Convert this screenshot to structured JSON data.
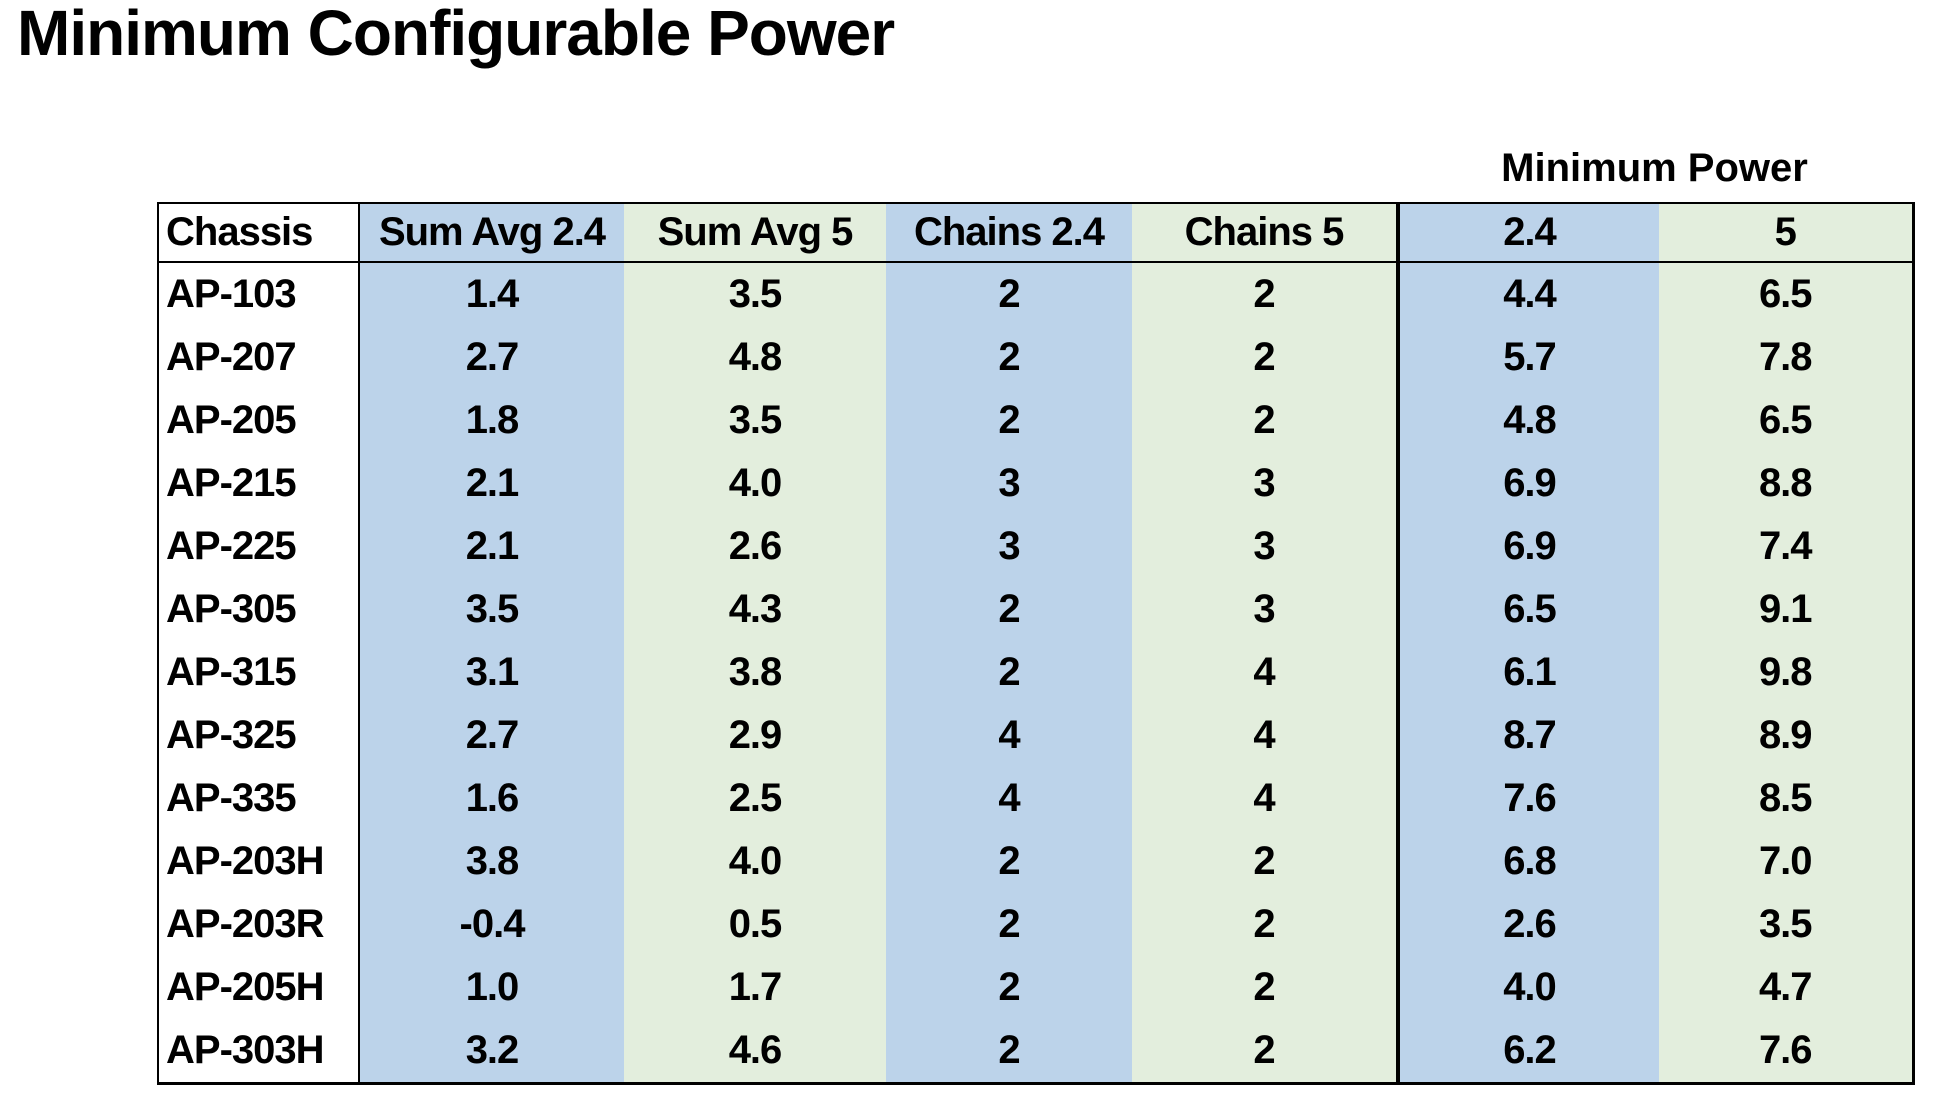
{
  "page": {
    "title": "Minimum Configurable Power"
  },
  "table": {
    "group_header": "Minimum Power",
    "headers": [
      "Chassis",
      "Sum Avg 2.4",
      "Sum Avg 5",
      "Chains 2.4",
      "Chains 5",
      "2.4",
      "5"
    ],
    "rows": [
      [
        "AP-103",
        "1.4",
        "3.5",
        "2",
        "2",
        "4.4",
        "6.5"
      ],
      [
        "AP-207",
        "2.7",
        "4.8",
        "2",
        "2",
        "5.7",
        "7.8"
      ],
      [
        "AP-205",
        "1.8",
        "3.5",
        "2",
        "2",
        "4.8",
        "6.5"
      ],
      [
        "AP-215",
        "2.1",
        "4.0",
        "3",
        "3",
        "6.9",
        "8.8"
      ],
      [
        "AP-225",
        "2.1",
        "2.6",
        "3",
        "3",
        "6.9",
        "7.4"
      ],
      [
        "AP-305",
        "3.5",
        "4.3",
        "2",
        "3",
        "6.5",
        "9.1"
      ],
      [
        "AP-315",
        "3.1",
        "3.8",
        "2",
        "4",
        "6.1",
        "9.8"
      ],
      [
        "AP-325",
        "2.7",
        "2.9",
        "4",
        "4",
        "8.7",
        "8.9"
      ],
      [
        "AP-335",
        "1.6",
        "2.5",
        "4",
        "4",
        "7.6",
        "8.5"
      ],
      [
        "AP-203H",
        "3.8",
        "4.0",
        "2",
        "2",
        "6.8",
        "7.0"
      ],
      [
        "AP-203R",
        "-0.4",
        "0.5",
        "2",
        "2",
        "2.6",
        "3.5"
      ],
      [
        "AP-205H",
        "1.0",
        "1.7",
        "2",
        "2",
        "4.0",
        "4.7"
      ],
      [
        "AP-303H",
        "3.2",
        "4.6",
        "2",
        "2",
        "6.2",
        "7.6"
      ]
    ]
  },
  "colors": {
    "column_blue": "#BCD3EA",
    "column_green": "#E3EEDD",
    "border_black": "#000000"
  },
  "chart_data": {
    "type": "table",
    "title": "Minimum Configurable Power",
    "column_group_label": "Minimum Power",
    "column_group_columns": [
      "2.4",
      "5"
    ],
    "columns": [
      "Chassis",
      "Sum Avg 2.4",
      "Sum Avg 5",
      "Chains 2.4",
      "Chains 5",
      "Minimum Power 2.4",
      "Minimum Power 5"
    ],
    "rows": [
      {
        "chassis": "AP-103",
        "sum_avg_2_4": 1.4,
        "sum_avg_5": 3.5,
        "chains_2_4": 2,
        "chains_5": 2,
        "min_power_2_4": 4.4,
        "min_power_5": 6.5
      },
      {
        "chassis": "AP-207",
        "sum_avg_2_4": 2.7,
        "sum_avg_5": 4.8,
        "chains_2_4": 2,
        "chains_5": 2,
        "min_power_2_4": 5.7,
        "min_power_5": 7.8
      },
      {
        "chassis": "AP-205",
        "sum_avg_2_4": 1.8,
        "sum_avg_5": 3.5,
        "chains_2_4": 2,
        "chains_5": 2,
        "min_power_2_4": 4.8,
        "min_power_5": 6.5
      },
      {
        "chassis": "AP-215",
        "sum_avg_2_4": 2.1,
        "sum_avg_5": 4.0,
        "chains_2_4": 3,
        "chains_5": 3,
        "min_power_2_4": 6.9,
        "min_power_5": 8.8
      },
      {
        "chassis": "AP-225",
        "sum_avg_2_4": 2.1,
        "sum_avg_5": 2.6,
        "chains_2_4": 3,
        "chains_5": 3,
        "min_power_2_4": 6.9,
        "min_power_5": 7.4
      },
      {
        "chassis": "AP-305",
        "sum_avg_2_4": 3.5,
        "sum_avg_5": 4.3,
        "chains_2_4": 2,
        "chains_5": 3,
        "min_power_2_4": 6.5,
        "min_power_5": 9.1
      },
      {
        "chassis": "AP-315",
        "sum_avg_2_4": 3.1,
        "sum_avg_5": 3.8,
        "chains_2_4": 2,
        "chains_5": 4,
        "min_power_2_4": 6.1,
        "min_power_5": 9.8
      },
      {
        "chassis": "AP-325",
        "sum_avg_2_4": 2.7,
        "sum_avg_5": 2.9,
        "chains_2_4": 4,
        "chains_5": 4,
        "min_power_2_4": 8.7,
        "min_power_5": 8.9
      },
      {
        "chassis": "AP-335",
        "sum_avg_2_4": 1.6,
        "sum_avg_5": 2.5,
        "chains_2_4": 4,
        "chains_5": 4,
        "min_power_2_4": 7.6,
        "min_power_5": 8.5
      },
      {
        "chassis": "AP-203H",
        "sum_avg_2_4": 3.8,
        "sum_avg_5": 4.0,
        "chains_2_4": 2,
        "chains_5": 2,
        "min_power_2_4": 6.8,
        "min_power_5": 7.0
      },
      {
        "chassis": "AP-203R",
        "sum_avg_2_4": -0.4,
        "sum_avg_5": 0.5,
        "chains_2_4": 2,
        "chains_5": 2,
        "min_power_2_4": 2.6,
        "min_power_5": 3.5
      },
      {
        "chassis": "AP-205H",
        "sum_avg_2_4": 1.0,
        "sum_avg_5": 1.7,
        "chains_2_4": 2,
        "chains_5": 2,
        "min_power_2_4": 4.0,
        "min_power_5": 4.7
      },
      {
        "chassis": "AP-303H",
        "sum_avg_2_4": 3.2,
        "sum_avg_5": 4.6,
        "chains_2_4": 2,
        "chains_5": 2,
        "min_power_2_4": 6.2,
        "min_power_5": 7.6
      }
    ]
  }
}
